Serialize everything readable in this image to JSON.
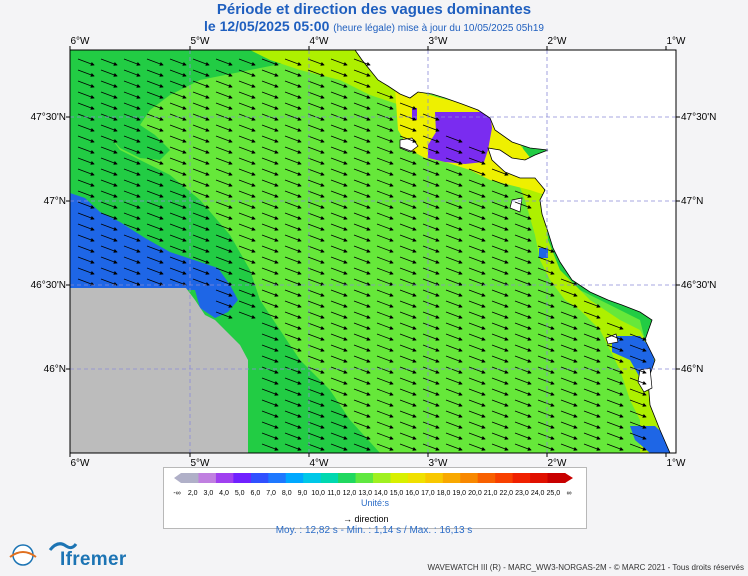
{
  "title": "Période et direction des vagues dominantes",
  "datetime": "le 12/05/2025 05:00",
  "update_note": "(heure légale) mise à jour du 10/05/2025 05h19",
  "map": {
    "lon_ticks": [
      "6°W",
      "5°W",
      "4°W",
      "3°W",
      "2°W",
      "1°W"
    ],
    "lat_ticks": [
      "47°30'N",
      "47°N",
      "46°30'N",
      "46°N"
    ],
    "zones": [
      {
        "name": "period-gt-16s",
        "color": "#22cc44"
      },
      {
        "name": "period-14-16s",
        "color": "#66e83a"
      },
      {
        "name": "period-16-17s",
        "color": "#aef000"
      },
      {
        "name": "period-17-18s",
        "color": "#eef000"
      },
      {
        "name": "period-4-5s",
        "color": "#7a2cf0"
      },
      {
        "name": "period-8-9s",
        "color": "#1e66e6"
      },
      {
        "name": "no-data",
        "color": "#bcbcbc"
      }
    ],
    "wave_direction": "east-south-east"
  },
  "legend": {
    "labels": [
      "-∞",
      "2,0",
      "3,0",
      "4,0",
      "5,0",
      "6,0",
      "7,0",
      "8,0",
      "9,0",
      "10,0",
      "11,0",
      "12,0",
      "13,0",
      "14,0",
      "15,0",
      "16,0",
      "17,0",
      "18,0",
      "19,0",
      "20,0",
      "21,0",
      "22,0",
      "23,0",
      "24,0",
      "25,0",
      "∞"
    ],
    "colors": [
      "#b0b0c8",
      "#c080e0",
      "#a040f0",
      "#7020ff",
      "#3050ff",
      "#1e78ff",
      "#00a8ff",
      "#00c8e8",
      "#00d8b0",
      "#20d860",
      "#60e840",
      "#a0f020",
      "#d8f000",
      "#f0e000",
      "#f8c800",
      "#f8a800",
      "#f88800",
      "#f86000",
      "#f84000",
      "#f02000",
      "#e01000",
      "#c80000"
    ],
    "unit": "Unité:s",
    "direction_label": "direction"
  },
  "stats": "Moy. : 12,82 s   -   Min. : 1,14 s / Max. : 16,13 s",
  "logos": {
    "left": "LOPS",
    "right": "Ifremer"
  },
  "footer": "WAVEWATCH III (R) - MARC_WW3-NORGAS-2M - © MARC 2021 - Tous droits réservés"
}
